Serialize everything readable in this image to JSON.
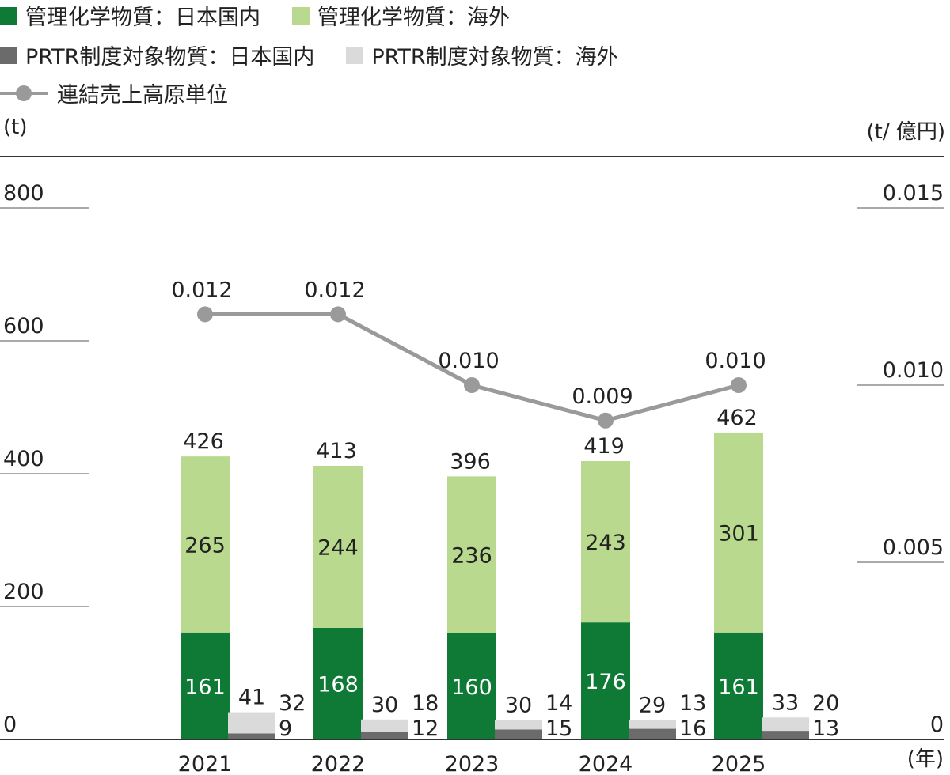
{
  "legend": {
    "domestic_chem": "管理化学物質：日本国内",
    "overseas_chem": "管理化学物質：海外",
    "domestic_prtr": "PRTR制度対象物質：日本国内",
    "overseas_prtr": "PRTR制度対象物質：海外",
    "intensity": "連結売上高原単位"
  },
  "colors": {
    "domestic_chem": "#0e7a35",
    "overseas_chem": "#b8d98e",
    "domestic_prtr": "#6b6b6b",
    "overseas_prtr": "#dadada",
    "intensity": "#9a9a9a"
  },
  "chart_data": {
    "type": "bar",
    "categories": [
      "2021",
      "2022",
      "2023",
      "2024",
      "2025"
    ],
    "ylabel": "(t)",
    "y2label": "(t/ 億円)",
    "xlabel": "(年)",
    "ylim": [
      0,
      800
    ],
    "y_ticks": [
      "0",
      "200",
      "400",
      "600",
      "800"
    ],
    "y2lim": [
      0,
      0.015
    ],
    "y2_ticks": [
      "0",
      "0.005",
      "0.010",
      "0.015"
    ],
    "chem_totals": [
      426,
      413,
      396,
      419,
      462
    ],
    "prtr_totals": [
      41,
      30,
      30,
      29,
      33
    ],
    "series": [
      {
        "name": "管理化学物質：日本国内",
        "key": "domestic_chem",
        "values": [
          161,
          168,
          160,
          176,
          161
        ]
      },
      {
        "name": "管理化学物質：海外",
        "key": "overseas_chem",
        "values": [
          265,
          244,
          236,
          243,
          301
        ]
      },
      {
        "name": "PRTR制度対象物質：日本国内",
        "key": "domestic_prtr",
        "values": [
          9,
          12,
          15,
          16,
          13
        ]
      },
      {
        "name": "PRTR制度対象物質：海外",
        "key": "overseas_prtr",
        "values": [
          32,
          18,
          14,
          13,
          20
        ]
      },
      {
        "name": "連結売上高原単位",
        "key": "intensity",
        "type": "line",
        "axis": "right",
        "values": [
          0.012,
          0.012,
          0.01,
          0.009,
          0.01
        ],
        "labels": [
          "0.012",
          "0.012",
          "0.010",
          "0.009",
          "0.010"
        ]
      }
    ]
  }
}
